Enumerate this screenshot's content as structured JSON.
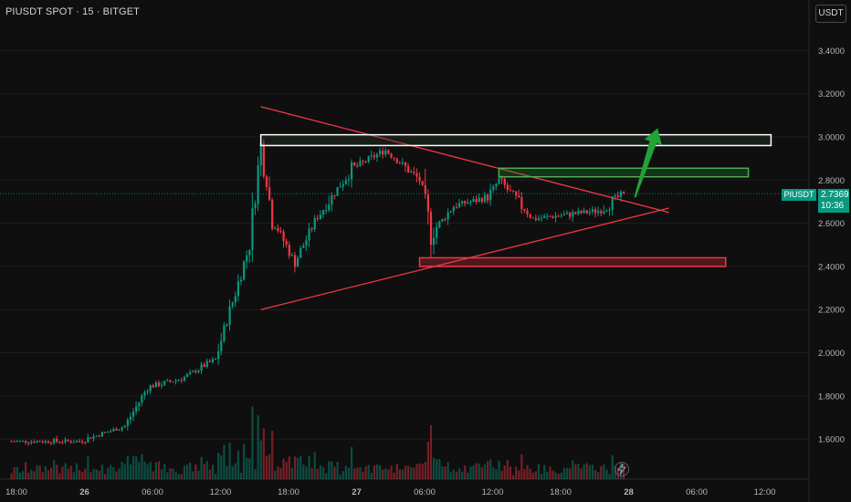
{
  "header": {
    "title": "PIUSDT SPOT · 15 · BITGET",
    "currency": "USDT"
  },
  "last_price": {
    "symbol": "PIUSDT",
    "value": "2.7369",
    "countdown": "10:36"
  },
  "colors": {
    "bg": "#0f0f0f",
    "up": "#089981",
    "down": "#f23645",
    "grid": "#1e1e1e",
    "trendline": "#f23645",
    "arrow": "#21a336"
  },
  "chart_data": {
    "type": "candlestick",
    "title": "PIUSDT SPOT · 15 · BITGET",
    "y_ticks": [
      "3.4000",
      "3.2000",
      "3.0000",
      "2.8000",
      "2.6000",
      "2.4000",
      "2.2000",
      "2.0000",
      "1.8000",
      "1.6000"
    ],
    "x_ticks": [
      "18:00",
      "26",
      "06:00",
      "12:00",
      "18:00",
      "27",
      "06:00",
      "12:00",
      "18:00",
      "28",
      "06:00",
      "12:00"
    ],
    "ylim": [
      1.55,
      3.43
    ],
    "last_price": 2.7369,
    "approx_path": [
      {
        "t": "25 18:00",
        "price": 1.59
      },
      {
        "t": "26 00:00",
        "price": 1.59
      },
      {
        "t": "26 04:00",
        "price": 1.66
      },
      {
        "t": "26 06:00",
        "price": 1.84
      },
      {
        "t": "26 09:00",
        "price": 1.88
      },
      {
        "t": "26 12:00",
        "price": 1.97
      },
      {
        "t": "26 15:00",
        "price": 2.5
      },
      {
        "t": "26 16:00",
        "price": 2.96
      },
      {
        "t": "26 17:00",
        "price": 2.62
      },
      {
        "t": "26 19:00",
        "price": 2.42
      },
      {
        "t": "26 21:00",
        "price": 2.63
      },
      {
        "t": "27 00:00",
        "price": 2.85
      },
      {
        "t": "27 03:00",
        "price": 2.94
      },
      {
        "t": "27 06:00",
        "price": 2.8
      },
      {
        "t": "27 07:00",
        "price": 2.55
      },
      {
        "t": "27 09:00",
        "price": 2.68
      },
      {
        "t": "27 12:00",
        "price": 2.72
      },
      {
        "t": "27 13:00",
        "price": 2.8
      },
      {
        "t": "27 16:00",
        "price": 2.62
      },
      {
        "t": "27 19:00",
        "price": 2.64
      },
      {
        "t": "27 22:00",
        "price": 2.66
      },
      {
        "t": "28 00:00",
        "price": 2.74
      }
    ],
    "annotations": {
      "triangle_upper": {
        "from": {
          "t": "26 16:00",
          "price": 3.14
        },
        "to": {
          "t": "28 04:00",
          "price": 2.65
        }
      },
      "triangle_lower": {
        "from": {
          "t": "26 16:00",
          "price": 2.2
        },
        "to": {
          "t": "28 04:00",
          "price": 2.67
        }
      },
      "resistance_zone": {
        "price_top": 3.01,
        "price_bottom": 2.96,
        "t_from": "26 16:00",
        "t_to": "28 13:00"
      },
      "green_zone": {
        "price_top": 2.855,
        "price_bottom": 2.815,
        "t_from": "27 13:00",
        "t_to": "28 11:00"
      },
      "red_zone": {
        "price_top": 2.44,
        "price_bottom": 2.4,
        "t_from": "27 06:00",
        "t_to": "28 09:00"
      },
      "arrow": {
        "from": {
          "t": "28 01:00",
          "price": 2.72
        },
        "to": {
          "t": "28 03:00",
          "price": 3.04
        }
      }
    }
  }
}
